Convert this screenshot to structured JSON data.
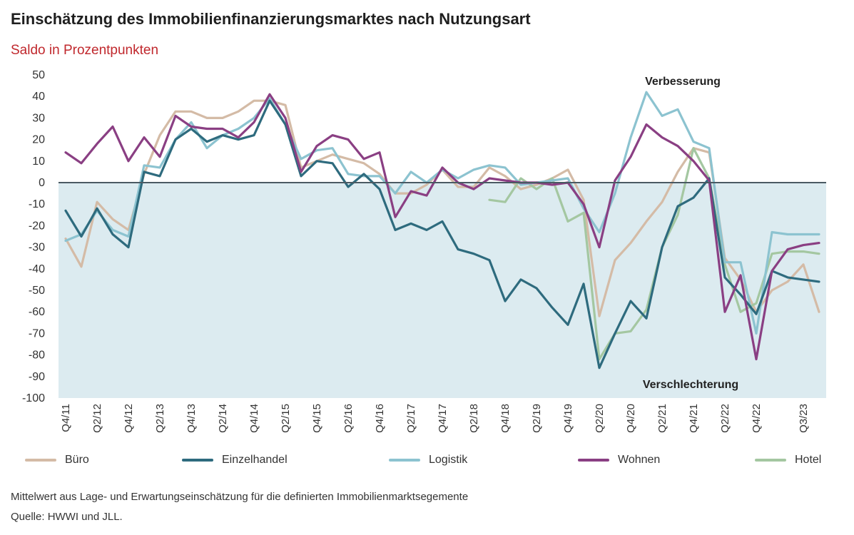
{
  "chart_data": {
    "type": "line",
    "title": "Einschätzung des Immobilienfinanzierungsmarktes nach Nutzungsart",
    "subtitle": "Saldo in Prozentpunkten",
    "ylim": [
      -100,
      50
    ],
    "yticks": [
      50,
      40,
      30,
      20,
      10,
      0,
      -10,
      -20,
      -30,
      -40,
      -50,
      -60,
      -70,
      -80,
      -90,
      -100
    ],
    "quarters": [
      "Q4/11",
      "Q1/12",
      "Q2/12",
      "Q3/12",
      "Q4/12",
      "Q1/13",
      "Q2/13",
      "Q3/13",
      "Q4/13",
      "Q1/14",
      "Q2/14",
      "Q3/14",
      "Q4/14",
      "Q1/15",
      "Q2/15",
      "Q3/15",
      "Q4/15",
      "Q1/16",
      "Q2/16",
      "Q3/16",
      "Q4/16",
      "Q1/17",
      "Q2/17",
      "Q3/17",
      "Q4/17",
      "Q1/18",
      "Q2/18",
      "Q3/18",
      "Q4/18",
      "Q1/19",
      "Q2/19",
      "Q3/19",
      "Q4/19",
      "Q1/20",
      "Q2/20",
      "Q3/20",
      "Q4/20",
      "Q1/21",
      "Q2/21",
      "Q3/21",
      "Q4/21",
      "Q1/22",
      "Q2/22",
      "Q3/22",
      "Q4/22",
      "Q1/23",
      "Q2/23",
      "Q3/23",
      "Q4/23"
    ],
    "tick_labels": [
      "Q4/11",
      "Q2/12",
      "Q4/12",
      "Q2/13",
      "Q4/13",
      "Q2/14",
      "Q4/14",
      "Q2/15",
      "Q4/15",
      "Q2/16",
      "Q4/16",
      "Q2/17",
      "Q4/17",
      "Q2/18",
      "Q4/18",
      "Q2/19",
      "Q4/19",
      "Q2/20",
      "Q4/20",
      "Q2/21",
      "Q4/21",
      "Q2/22",
      "Q4/22",
      "Q3/23"
    ],
    "annotations": {
      "top": "Verbesserung",
      "bottom": "Verschlechterung"
    },
    "series": [
      {
        "name": "Büro",
        "color": "#d4bba6",
        "values": [
          -26,
          -39,
          -9,
          -17,
          -22,
          4,
          22,
          33,
          33,
          30,
          30,
          33,
          38,
          38,
          36,
          7,
          10,
          13,
          11,
          9,
          4,
          -5,
          -5,
          -1,
          6,
          -2,
          -2,
          7,
          3,
          -3,
          -1,
          2,
          6,
          -8,
          -62,
          -36,
          -28,
          -18,
          -9,
          5,
          16,
          14,
          -35,
          -45,
          -60,
          -50,
          -46,
          -38,
          -60
        ]
      },
      {
        "name": "Einzelhandel",
        "color": "#2e6b7e",
        "values": [
          -13,
          -25,
          -12,
          -24,
          -30,
          5,
          3,
          20,
          25,
          19,
          22,
          20,
          22,
          38,
          27,
          3,
          10,
          9,
          -2,
          4,
          -3,
          -22,
          -19,
          -22,
          -18,
          -31,
          -33,
          -36,
          -55,
          -45,
          -49,
          -58,
          -66,
          -47,
          -86,
          -70,
          -55,
          -63,
          -30,
          -11,
          -7,
          2,
          -44,
          -52,
          -61,
          -41,
          -44,
          -45,
          -46
        ]
      },
      {
        "name": "Logistik",
        "color": "#8cc3d0",
        "values": [
          -27,
          -24,
          -13,
          -22,
          -25,
          8,
          7,
          20,
          28,
          16,
          22,
          25,
          30,
          39,
          27,
          11,
          15,
          16,
          4,
          3,
          3,
          -5,
          5,
          0,
          6,
          2,
          6,
          8,
          7,
          -1,
          0,
          1,
          2,
          -12,
          -23,
          -5,
          21,
          42,
          31,
          34,
          19,
          16,
          -37,
          -37,
          -70,
          -23,
          -24,
          -24,
          -24
        ]
      },
      {
        "name": "Wohnen",
        "color": "#8a3f83",
        "values": [
          14,
          9,
          18,
          26,
          10,
          21,
          12,
          31,
          26,
          25,
          25,
          21,
          28,
          41,
          30,
          5,
          17,
          22,
          20,
          11,
          14,
          -16,
          -4,
          -6,
          7,
          0,
          -3,
          2,
          1,
          0,
          0,
          -1,
          0,
          -10,
          -30,
          1,
          12,
          27,
          21,
          17,
          10,
          1,
          -60,
          -43,
          -82,
          -41,
          -31,
          -29,
          -28
        ]
      },
      {
        "name": "Hotel",
        "color": "#a4c7a1",
        "values": [
          null,
          null,
          null,
          null,
          null,
          null,
          null,
          null,
          null,
          null,
          null,
          null,
          null,
          null,
          null,
          null,
          null,
          null,
          null,
          null,
          null,
          null,
          null,
          null,
          null,
          null,
          null,
          -8,
          -9,
          2,
          -3,
          2,
          -18,
          -14,
          -82,
          -70,
          -69,
          -59,
          -30,
          -15,
          16,
          2,
          -38,
          -60,
          -56,
          -33,
          -32,
          -32,
          -33
        ]
      }
    ]
  },
  "footnote": "Mittelwert aus Lage- und Erwartungseinschätzung für die definierten Immobilienmarktsegemente",
  "source": "Quelle: HWWI und JLL."
}
